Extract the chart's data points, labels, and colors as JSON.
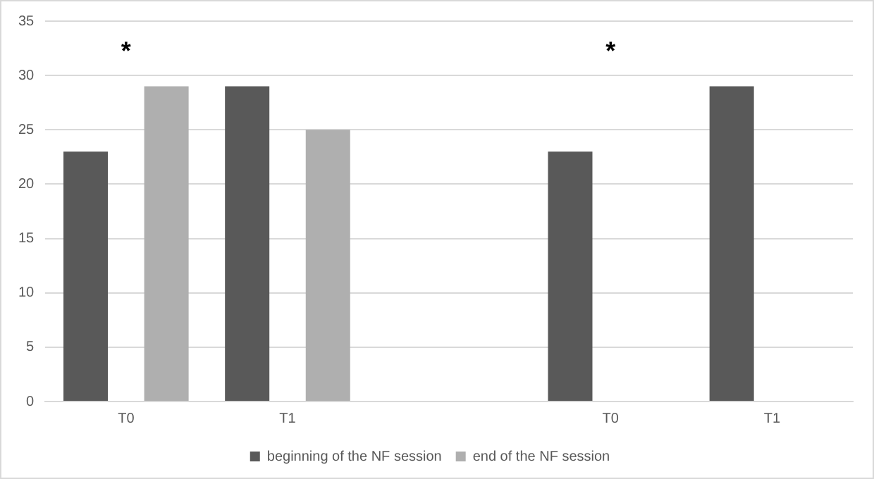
{
  "chart_data": {
    "type": "bar",
    "categories": [
      "T0",
      "T1",
      null,
      "T0",
      "T1"
    ],
    "series": [
      {
        "name": "beginning of the NF session",
        "color": "#595959",
        "values": [
          23,
          29,
          null,
          23,
          29
        ]
      },
      {
        "name": "end of the NF session",
        "color": "#afafaf",
        "values": [
          29,
          25,
          null,
          null,
          null
        ]
      }
    ],
    "ylim": [
      0,
      35
    ],
    "yticks": [
      0,
      5,
      10,
      15,
      20,
      25,
      30,
      35
    ],
    "grid": "y",
    "legend": "bottom",
    "annotations": [
      "*",
      "*"
    ]
  }
}
